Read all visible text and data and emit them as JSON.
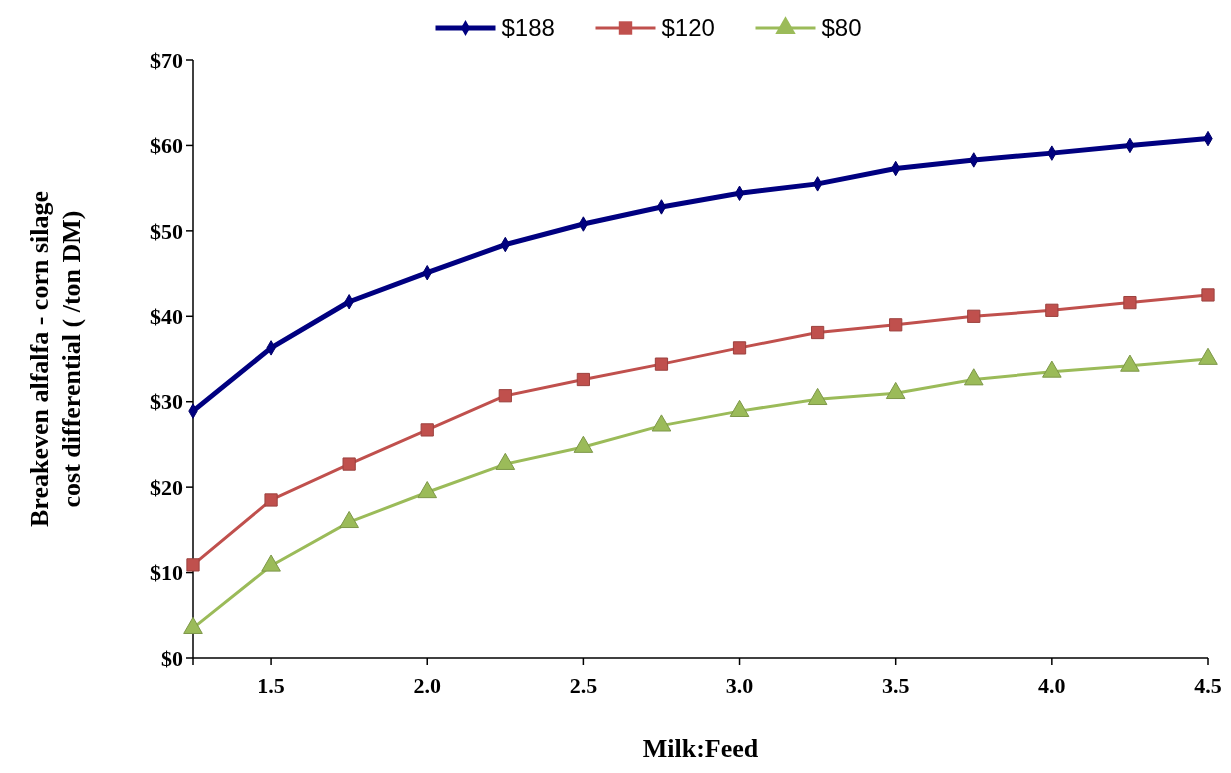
{
  "chart_data": {
    "type": "line",
    "xlabel": "Milk:Feed",
    "ylabel": "Breakeven alfalfa - corn silage cost differential ( /ton DM)",
    "x": [
      1.25,
      1.5,
      1.75,
      2.0,
      2.25,
      2.5,
      2.75,
      3.0,
      3.25,
      3.5,
      3.75,
      4.0,
      4.25,
      4.5
    ],
    "xlim": [
      1.25,
      4.5
    ],
    "xticks": [
      {
        "value": 1.5,
        "label": "1.5"
      },
      {
        "value": 2,
        "label": "2.0"
      },
      {
        "value": 2.5,
        "label": "2.5"
      },
      {
        "value": 3,
        "label": "3.0"
      },
      {
        "value": 3.5,
        "label": "3.5"
      },
      {
        "value": 4,
        "label": "4.0"
      },
      {
        "value": 4.5,
        "label": "4.5"
      }
    ],
    "ylim": [
      0,
      70
    ],
    "yticks": [
      {
        "value": 0,
        "label": "$0"
      },
      {
        "value": 10,
        "label": "$10"
      },
      {
        "value": 20,
        "label": "$20"
      },
      {
        "value": 30,
        "label": "$30"
      },
      {
        "value": 40,
        "label": "$40"
      },
      {
        "value": 50,
        "label": "$50"
      },
      {
        "value": 60,
        "label": "$60"
      },
      {
        "value": 70,
        "label": "$70"
      }
    ],
    "legend": "top",
    "grid": false,
    "series": [
      {
        "name": "$188",
        "color": "#000080",
        "marker": "diamond",
        "values": [
          28.9,
          36.3,
          41.7,
          45.1,
          48.4,
          50.8,
          52.8,
          54.4,
          55.5,
          57.3,
          58.3,
          59.1,
          60.0,
          60.8
        ]
      },
      {
        "name": "$120",
        "color": "#c0504d",
        "marker": "square",
        "values": [
          10.9,
          18.5,
          22.7,
          26.7,
          30.7,
          32.6,
          34.4,
          36.3,
          38.1,
          39.0,
          40.0,
          40.7,
          41.6,
          42.5
        ]
      },
      {
        "name": "$80",
        "color": "#9bbb59",
        "marker": "triangle",
        "values": [
          3.5,
          10.8,
          15.9,
          19.4,
          22.7,
          24.7,
          27.2,
          28.9,
          30.3,
          31.0,
          32.6,
          33.5,
          34.2,
          35.0
        ]
      }
    ]
  }
}
